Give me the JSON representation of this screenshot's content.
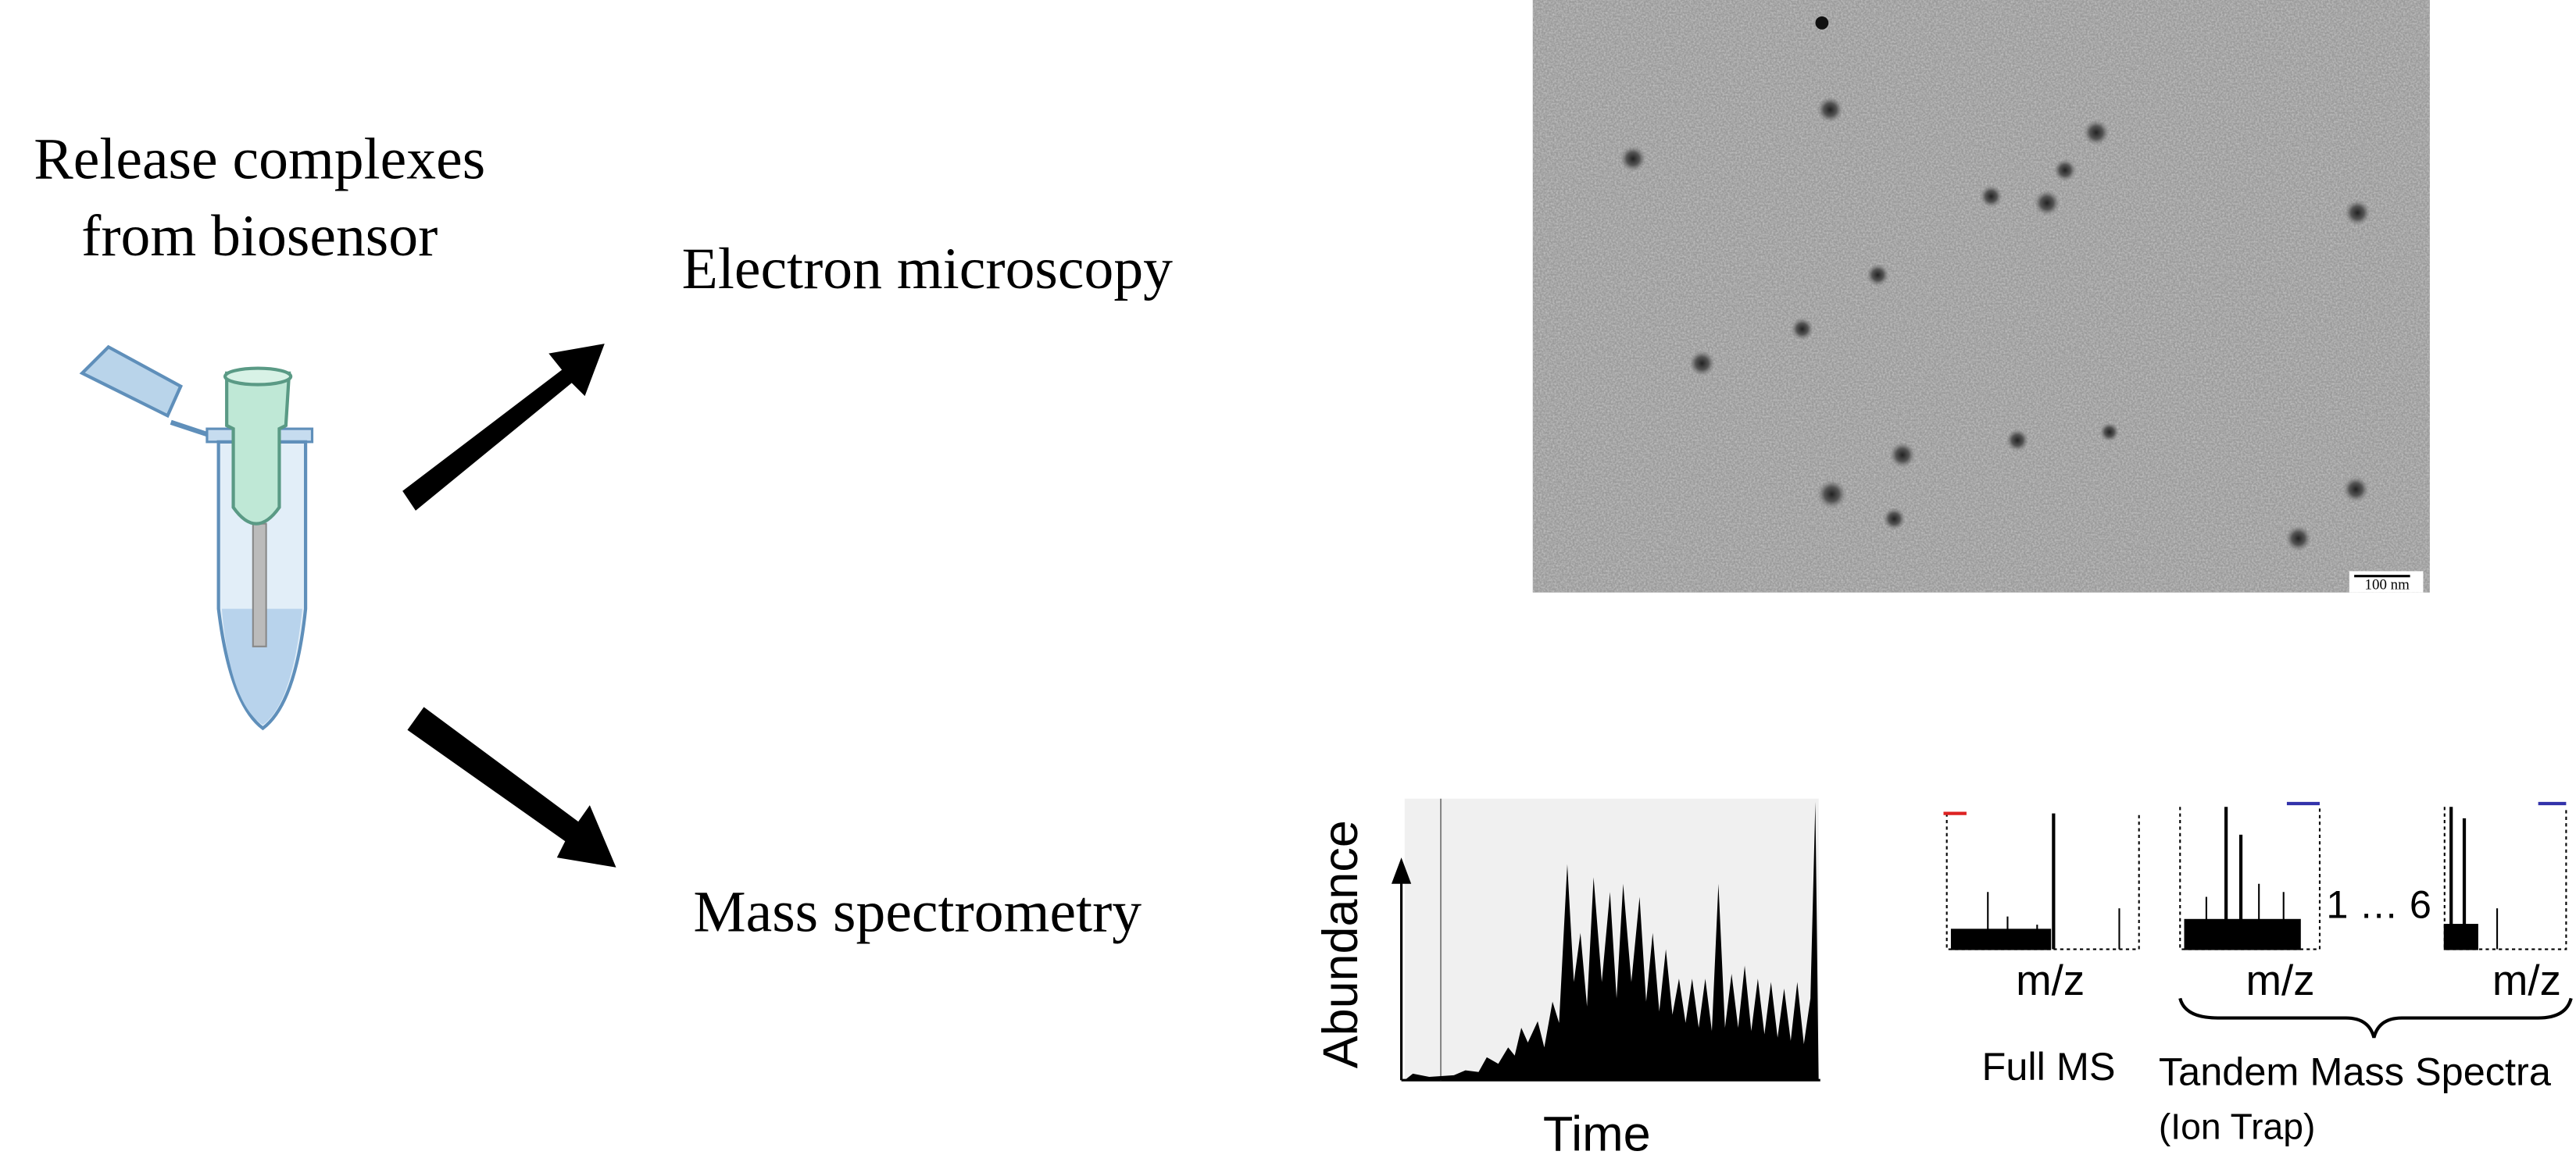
{
  "left": {
    "title_lines": [
      "Release complexes",
      "from  biosensor"
    ]
  },
  "branches": [
    {
      "label": "Electron microscopy"
    },
    {
      "label": "Mass spectrometry"
    }
  ],
  "micrograph": {
    "scale_bar": "100 nm"
  },
  "chromatogram": {
    "y_label": "Abundance",
    "x_label": "Time"
  },
  "spectra": {
    "axis_labels": [
      "m/z",
      "m/z",
      "m/z"
    ],
    "range": "1 … 6",
    "full_ms": "Full MS",
    "tandem": "Tandem Mass Spectra",
    "tandem_sub": "(Ion Trap)"
  }
}
